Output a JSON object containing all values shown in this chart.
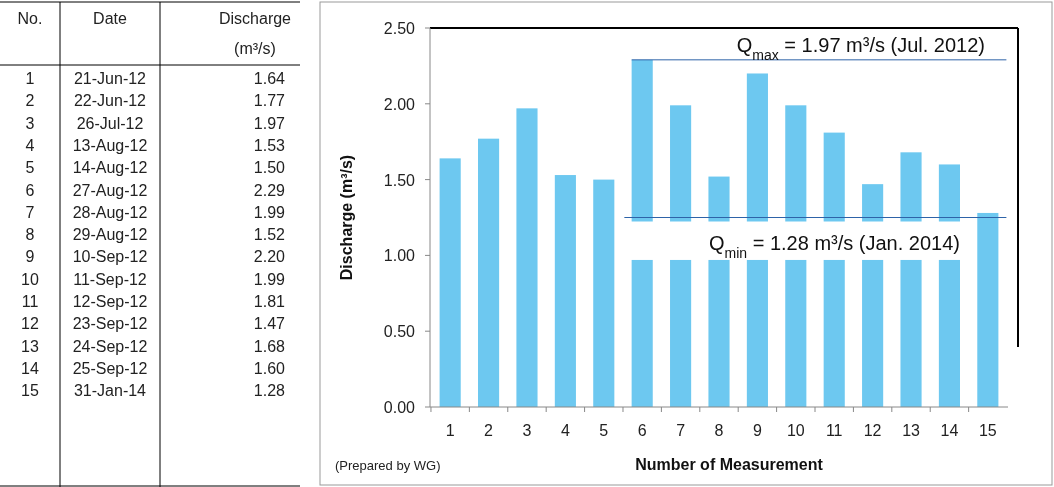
{
  "chart_data": {
    "type": "bar",
    "xlabel": "Number of Measurement",
    "ylabel": "Discharge (m³/s)",
    "categories": [
      "1",
      "2",
      "3",
      "4",
      "5",
      "6",
      "7",
      "8",
      "9",
      "10",
      "11",
      "12",
      "13",
      "14",
      "15"
    ],
    "values": [
      1.64,
      1.77,
      1.97,
      1.53,
      1.5,
      2.29,
      1.99,
      1.52,
      2.2,
      1.99,
      1.81,
      1.47,
      1.68,
      1.6,
      1.28
    ],
    "color": "#6dc8f0",
    "ylim": [
      0,
      2.5
    ],
    "yticks": [
      {
        "value": 0,
        "label": "0.00"
      },
      {
        "value": 0.5,
        "label": "0.50"
      },
      {
        "value": 1,
        "label": "1.00"
      },
      {
        "value": 1.5,
        "label": "1.50"
      },
      {
        "value": 2,
        "label": "2.00"
      },
      {
        "value": 2.5,
        "label": "2.50"
      }
    ],
    "ref_lines": [
      {
        "axis": "y",
        "value": 2.29,
        "color": "#2e63a8"
      },
      {
        "axis": "y",
        "value": 1.25,
        "color": "#2e63a8"
      }
    ],
    "annotations": [
      "No.",
      "Date",
      "Discharge",
      "(m³/s)",
      "21-Jun-12",
      "22-Jun-12",
      "26-Jul-12",
      "13-Aug-12",
      "14-Aug-12",
      "27-Aug-12",
      "28-Aug-12",
      "29-Aug-12",
      "10-Sep-12",
      "11-Sep-12",
      "12-Sep-12",
      "23-Sep-12",
      "24-Sep-12",
      "25-Sep-12",
      "31-Jan-14",
      "1.64",
      "1.77",
      "1.97",
      "1.53",
      "1.50",
      "2.29",
      "1.99",
      "1.52",
      "2.20",
      "1.99",
      "1.81",
      "1.47",
      "1.68",
      "1.60",
      "1.28",
      "(Prepared by WG)",
      "Q$_{max}$ = 1.97 m³/s (Jul. 2012)",
      "Q$_{min}$ = 1.28 m³/s (Jan. 2014)"
    ]
  }
}
